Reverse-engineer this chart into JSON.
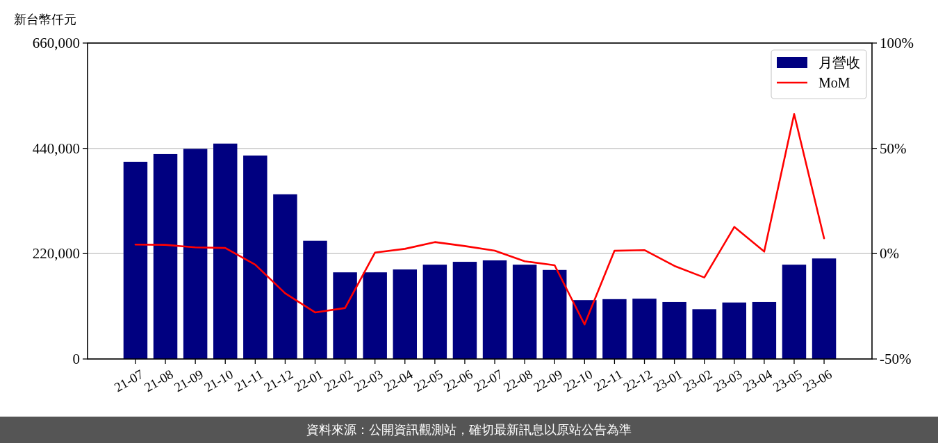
{
  "chart_data": {
    "type": "bar",
    "ylabel": "新台幣仟元",
    "categories": [
      "21-07",
      "21-08",
      "21-09",
      "21-10",
      "21-11",
      "21-12",
      "22-01",
      "22-02",
      "22-03",
      "22-04",
      "22-05",
      "22-06",
      "22-07",
      "22-08",
      "22-09",
      "22-10",
      "22-11",
      "22-12",
      "23-01",
      "23-02",
      "23-03",
      "23-04",
      "23-05",
      "23-06"
    ],
    "series": [
      {
        "name": "月營收",
        "color": "#000080",
        "values": [
          412000,
          428000,
          439000,
          450000,
          425000,
          344000,
          247000,
          181000,
          181000,
          187000,
          197000,
          203000,
          206000,
          197000,
          186000,
          123000,
          125000,
          126000,
          119000,
          104000,
          118000,
          119000,
          197000,
          210000
        ]
      },
      {
        "name": "MoM",
        "type": "line",
        "axis": "y2",
        "color": "#ff0000",
        "values": [
          4.3,
          4.2,
          3.0,
          2.7,
          -5.2,
          -18.8,
          -27.9,
          -25.8,
          0.5,
          2.3,
          5.5,
          3.6,
          1.4,
          -3.6,
          -5.5,
          -33.6,
          1.4,
          1.7,
          -5.8,
          -11.3,
          12.7,
          1.0,
          66.3,
          7.3
        ]
      }
    ],
    "ylim": [
      0,
      660000
    ],
    "yticks": [
      0,
      {
        "value": 220000,
        "label": "220,000"
      },
      {
        "value": 440000,
        "label": "440,000"
      },
      {
        "value": 660000,
        "label": "660,000"
      }
    ],
    "y2lim": [
      -50,
      100
    ],
    "y2ticks": [
      {
        "value": -50,
        "label": "-50%"
      },
      {
        "value": 0,
        "label": "0%"
      },
      {
        "value": 50,
        "label": "50%"
      },
      {
        "value": 100,
        "label": "100%"
      }
    ],
    "grid": "y",
    "legend": "top right",
    "annotations": [
      "資料來源：公開資訊觀測站，確切最新訊息以原站公告為準"
    ]
  }
}
